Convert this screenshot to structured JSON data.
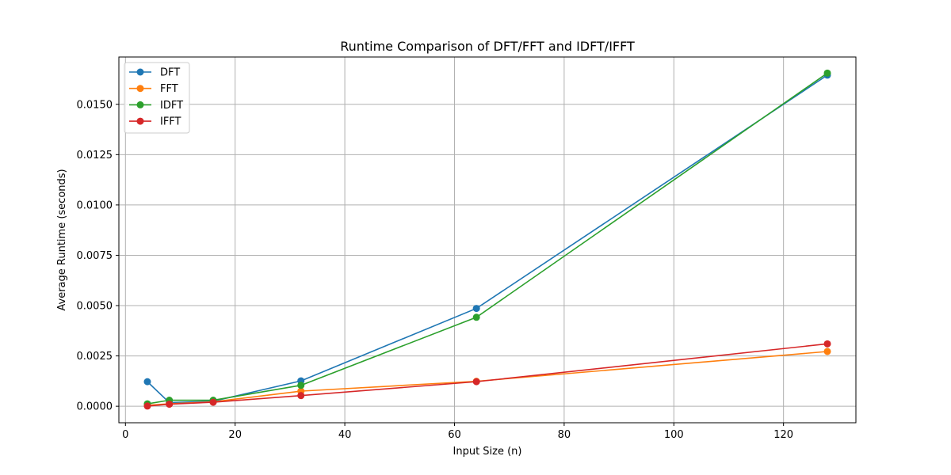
{
  "chart_data": {
    "type": "line",
    "title": "Runtime Comparison of DFT/FFT and IDFT/IFFT",
    "xlabel": "Input Size (n)",
    "ylabel": "Average Runtime (seconds)",
    "xlim": [
      -1.2,
      133.2
    ],
    "ylim": [
      -0.00082,
      0.01735
    ],
    "xticks": [
      0,
      20,
      40,
      60,
      80,
      100,
      120
    ],
    "xtick_labels": [
      "0",
      "20",
      "40",
      "60",
      "80",
      "100",
      "120"
    ],
    "yticks": [
      0.0,
      0.0025,
      0.005,
      0.0075,
      0.01,
      0.0125,
      0.015
    ],
    "ytick_labels": [
      "0.0000",
      "0.0025",
      "0.0050",
      "0.0075",
      "0.0100",
      "0.0125",
      "0.0150"
    ],
    "grid": true,
    "legend_position": "top-left",
    "x": [
      4,
      8,
      16,
      32,
      64,
      128
    ],
    "series": [
      {
        "name": "DFT",
        "color": "#1f77b4",
        "values": [
          0.00122,
          0.00018,
          0.00025,
          0.00126,
          0.00486,
          0.01645
        ]
      },
      {
        "name": "FFT",
        "color": "#ff7f0e",
        "values": [
          5e-05,
          0.00012,
          0.00022,
          0.00075,
          0.00124,
          0.00272
        ]
      },
      {
        "name": "IDFT",
        "color": "#2ca02c",
        "values": [
          0.00012,
          0.0003,
          0.0003,
          0.00104,
          0.00442,
          0.01655
        ]
      },
      {
        "name": "IFFT",
        "color": "#d62728",
        "values": [
          1e-05,
          0.0001,
          0.0002,
          0.00053,
          0.00122,
          0.0031
        ]
      }
    ]
  }
}
